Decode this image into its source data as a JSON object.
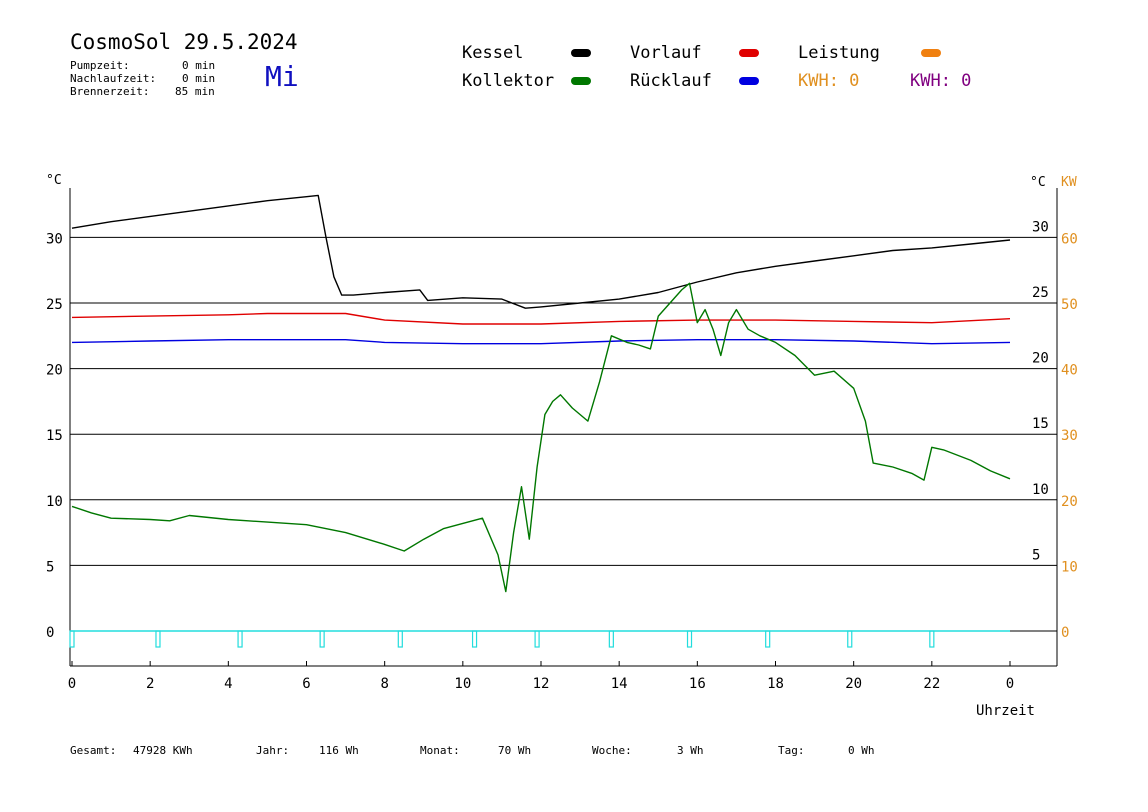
{
  "header": {
    "title": "CosmoSol 29.5.2024",
    "day": "Mi",
    "stats": [
      {
        "label": "Pumpzeit:",
        "value": "0 min"
      },
      {
        "label": "Nachlaufzeit:",
        "value": "0 min"
      },
      {
        "label": "Brennerzeit:",
        "value": "85 min"
      }
    ]
  },
  "legend": {
    "kessel": {
      "label": "Kessel",
      "color": "#000000"
    },
    "kollektor": {
      "label": "Kollektor",
      "color": "#007700"
    },
    "vorlauf": {
      "label": "Vorlauf",
      "color": "#e00000"
    },
    "ruecklauf": {
      "label": "Rücklauf",
      "color": "#0000e0"
    },
    "leistung": {
      "label": "Leistung",
      "color": "#f08010"
    },
    "kwh_orange": {
      "label": "KWH: 0",
      "color": "#e09020"
    },
    "kwh_purple": {
      "label": "KWH: 0",
      "color": "#800080"
    }
  },
  "footer": [
    {
      "label": "Gesamt:",
      "value": "47928 KWh"
    },
    {
      "label": "Jahr:",
      "value": "116 Wh"
    },
    {
      "label": "Monat:",
      "value": "70 Wh"
    },
    {
      "label": "Woche:",
      "value": "3 Wh"
    },
    {
      "label": "Tag:",
      "value": "0 Wh"
    }
  ],
  "chart_data": {
    "type": "line",
    "xlabel": "Uhrzeit",
    "ylabel_left": "°C",
    "ylabel_right": [
      "°C",
      "KW"
    ],
    "xlim": [
      0,
      24
    ],
    "ylim": [
      -2,
      33
    ],
    "x_ticks": [
      "0",
      "2",
      "4",
      "6",
      "8",
      "10",
      "12",
      "14",
      "16",
      "18",
      "20",
      "22",
      "0"
    ],
    "y_ticks_left": [
      "0",
      "5",
      "10",
      "15",
      "20",
      "25",
      "30"
    ],
    "y_ticks_right_c": [
      "5",
      "10",
      "15",
      "20",
      "25",
      "30"
    ],
    "y_ticks_right_kw": [
      "0",
      "10",
      "20",
      "30",
      "40",
      "50",
      "60"
    ],
    "grid": "horizontal",
    "series": [
      {
        "name": "Kessel",
        "color": "#000000",
        "points": [
          [
            0,
            30.7
          ],
          [
            1,
            31.2
          ],
          [
            2,
            31.6
          ],
          [
            3,
            32
          ],
          [
            4,
            32.4
          ],
          [
            5,
            32.8
          ],
          [
            6,
            33.1
          ],
          [
            6.3,
            33.2
          ],
          [
            6.5,
            30
          ],
          [
            6.7,
            27
          ],
          [
            6.9,
            25.6
          ],
          [
            7.2,
            25.6
          ],
          [
            8,
            25.8
          ],
          [
            8.9,
            26
          ],
          [
            9.1,
            25.2
          ],
          [
            10,
            25.4
          ],
          [
            11,
            25.3
          ],
          [
            11.6,
            24.6
          ],
          [
            12,
            24.7
          ],
          [
            13,
            25
          ],
          [
            14,
            25.3
          ],
          [
            15,
            25.8
          ],
          [
            16,
            26.6
          ],
          [
            17,
            27.3
          ],
          [
            18,
            27.8
          ],
          [
            19,
            28.2
          ],
          [
            20,
            28.6
          ],
          [
            21,
            29
          ],
          [
            22,
            29.2
          ],
          [
            23,
            29.5
          ],
          [
            24,
            29.8
          ]
        ]
      },
      {
        "name": "Vorlauf",
        "color": "#e00000",
        "points": [
          [
            0,
            23.9
          ],
          [
            2,
            24
          ],
          [
            4,
            24.1
          ],
          [
            5,
            24.2
          ],
          [
            7,
            24.2
          ],
          [
            8,
            23.7
          ],
          [
            10,
            23.4
          ],
          [
            12,
            23.4
          ],
          [
            14,
            23.6
          ],
          [
            16,
            23.7
          ],
          [
            18,
            23.7
          ],
          [
            20,
            23.6
          ],
          [
            22,
            23.5
          ],
          [
            24,
            23.8
          ]
        ]
      },
      {
        "name": "Rücklauf",
        "color": "#0000e0",
        "points": [
          [
            0,
            22
          ],
          [
            2,
            22.1
          ],
          [
            4,
            22.2
          ],
          [
            6,
            22.2
          ],
          [
            7,
            22.2
          ],
          [
            8,
            22
          ],
          [
            10,
            21.9
          ],
          [
            12,
            21.9
          ],
          [
            14,
            22.1
          ],
          [
            16,
            22.2
          ],
          [
            18,
            22.2
          ],
          [
            20,
            22.1
          ],
          [
            22,
            21.9
          ],
          [
            24,
            22
          ]
        ]
      },
      {
        "name": "Kollektor",
        "color": "#007700",
        "points": [
          [
            0,
            9.5
          ],
          [
            0.5,
            9
          ],
          [
            1,
            8.6
          ],
          [
            2,
            8.5
          ],
          [
            2.5,
            8.4
          ],
          [
            3,
            8.8
          ],
          [
            4,
            8.5
          ],
          [
            4.5,
            8.4
          ],
          [
            5,
            8.3
          ],
          [
            6,
            8.1
          ],
          [
            7,
            7.5
          ],
          [
            8,
            6.6
          ],
          [
            8.5,
            6.1
          ],
          [
            9,
            7
          ],
          [
            9.5,
            7.8
          ],
          [
            10,
            8.2
          ],
          [
            10.5,
            8.6
          ],
          [
            10.9,
            5.8
          ],
          [
            11.1,
            3
          ],
          [
            11.3,
            7.5
          ],
          [
            11.5,
            11
          ],
          [
            11.7,
            7
          ],
          [
            11.9,
            12.5
          ],
          [
            12.1,
            16.5
          ],
          [
            12.3,
            17.5
          ],
          [
            12.5,
            18
          ],
          [
            12.8,
            17
          ],
          [
            13.2,
            16
          ],
          [
            13.5,
            19
          ],
          [
            13.8,
            22.5
          ],
          [
            14.2,
            22
          ],
          [
            14.5,
            21.8
          ],
          [
            14.8,
            21.5
          ],
          [
            15,
            24
          ],
          [
            15.3,
            25
          ],
          [
            15.6,
            26
          ],
          [
            15.8,
            26.5
          ],
          [
            16,
            23.5
          ],
          [
            16.2,
            24.5
          ],
          [
            16.4,
            23
          ],
          [
            16.6,
            21
          ],
          [
            16.8,
            23.5
          ],
          [
            17,
            24.5
          ],
          [
            17.3,
            23
          ],
          [
            17.6,
            22.5
          ],
          [
            18,
            22
          ],
          [
            18.5,
            21
          ],
          [
            19,
            19.5
          ],
          [
            19.5,
            19.8
          ],
          [
            20,
            18.5
          ],
          [
            20.3,
            16
          ],
          [
            20.5,
            12.8
          ],
          [
            21,
            12.5
          ],
          [
            21.5,
            12
          ],
          [
            21.8,
            11.5
          ],
          [
            22,
            14
          ],
          [
            22.3,
            13.8
          ],
          [
            23,
            13
          ],
          [
            23.5,
            12.2
          ],
          [
            24,
            11.6
          ]
        ]
      }
    ],
    "daily_markers_x": [
      0,
      2.2,
      4.3,
      6.4,
      8.4,
      10.3,
      11.9,
      13.8,
      15.8,
      17.8,
      19.9,
      22
    ]
  }
}
